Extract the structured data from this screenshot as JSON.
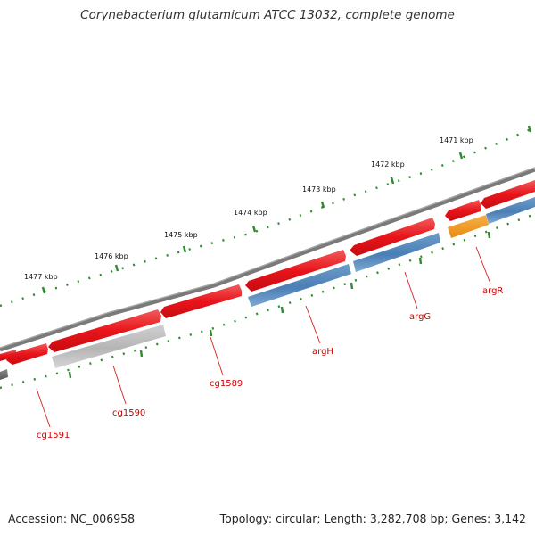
{
  "title": "Corynebacterium glutamicum ATCC 13032, complete genome",
  "footer": {
    "accession": "Accession: NC_006958",
    "summary": "Topology: circular; Length: 3,282,708 bp; Genes: 3,142"
  },
  "colors": {
    "background": "#ffffff",
    "backbone": "#7a7a7a",
    "tick_marks": "#2e8b2e",
    "gene_forward": "#e8151b",
    "gene_reverse_blue": "#4a7fb5",
    "gene_reverse_grey": "#b5b5b5",
    "gene_orange": "#f39a1e",
    "label_text": "#cc0000"
  },
  "scale_labels": [
    "1471 kbp",
    "1472 kbp",
    "1473 kbp",
    "1474 kbp",
    "1475 kbp",
    "1476 kbp",
    "1477 kbp"
  ],
  "gene_labels": [
    "argR",
    "argG",
    "argH",
    "cg1589",
    "cg1590",
    "cg1591"
  ]
}
